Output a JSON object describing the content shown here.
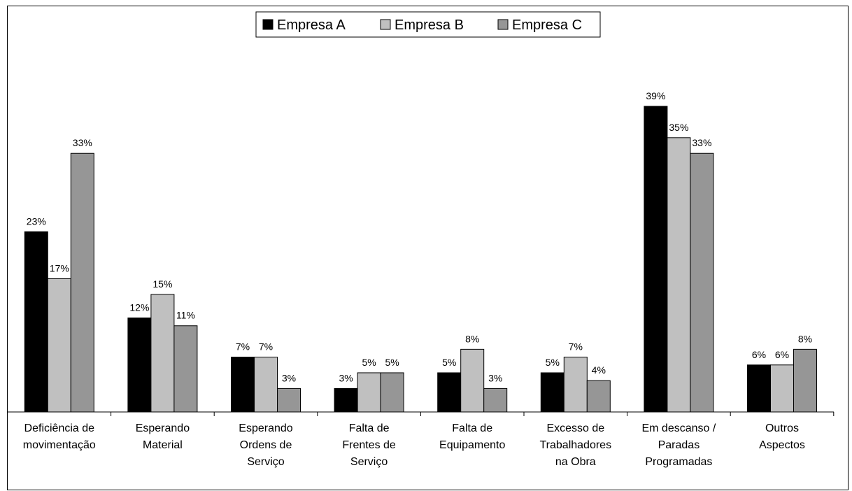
{
  "chart_data": {
    "type": "bar",
    "categories": [
      [
        "Deficiência de",
        "movimentação"
      ],
      [
        "Esperando",
        "Material"
      ],
      [
        "Esperando",
        "Ordens de",
        "Serviço"
      ],
      [
        "Falta de",
        "Frentes de",
        "Serviço"
      ],
      [
        "Falta de",
        "Equipamento"
      ],
      [
        "Excesso de",
        "Trabalhadores",
        "na Obra"
      ],
      [
        "Em descanso /",
        "Paradas",
        "Programadas"
      ],
      [
        "Outros",
        "Aspectos"
      ]
    ],
    "series": [
      {
        "name": "Empresa A",
        "color": "#000000",
        "values": [
          23,
          12,
          7,
          3,
          5,
          5,
          39,
          6
        ]
      },
      {
        "name": "Empresa B",
        "color": "#c0c0c0",
        "values": [
          17,
          15,
          7,
          5,
          8,
          7,
          35,
          6
        ]
      },
      {
        "name": "Empresa C",
        "color": "#969696",
        "values": [
          33,
          11,
          3,
          5,
          3,
          4,
          33,
          8
        ]
      }
    ],
    "data_labels": [
      [
        "23%",
        "12%",
        "7%",
        "3%",
        "5%",
        "5%",
        "39%",
        "6%"
      ],
      [
        "17%",
        "15%",
        "7%",
        "5%",
        "8%",
        "7%",
        "35%",
        "6%"
      ],
      [
        "33%",
        "11%",
        "3%",
        "5%",
        "3%",
        "4%",
        "33%",
        "8%"
      ]
    ],
    "ylim": [
      0,
      41.5
    ],
    "legend_position": "top-center",
    "grid": false,
    "title": "",
    "xlabel": "",
    "ylabel": ""
  }
}
